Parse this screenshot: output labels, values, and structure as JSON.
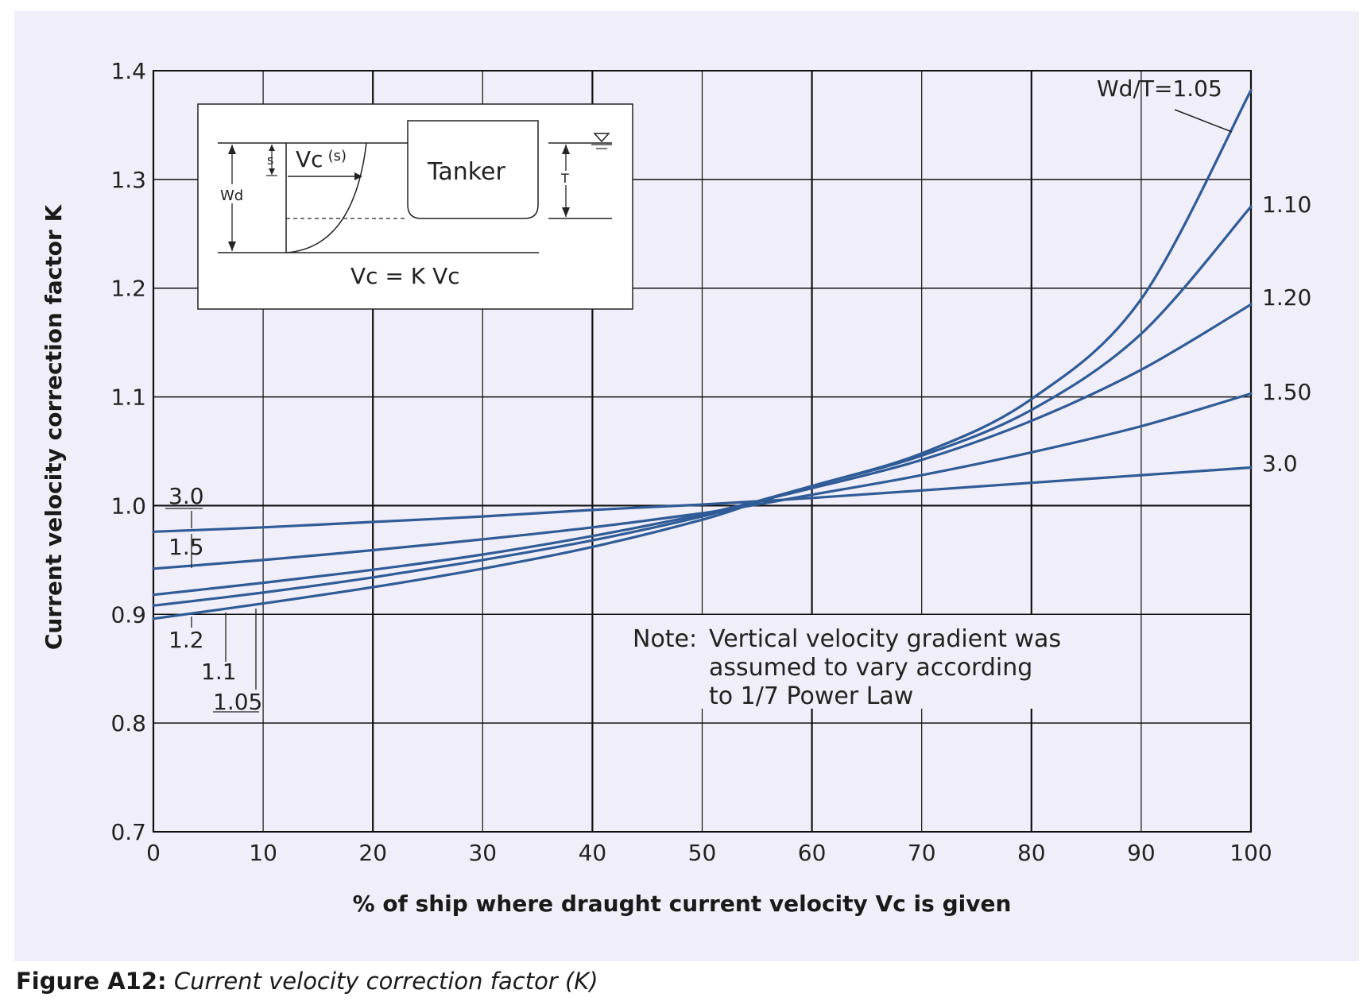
{
  "chart_data": {
    "type": "line",
    "title": "",
    "xlabel": "% of ship where draught current velocity Vc is given",
    "ylabel": "Current velocity correction factor K",
    "xlim": [
      0,
      100
    ],
    "ylim": [
      0.7,
      1.4
    ],
    "x_ticks": [
      0,
      10,
      20,
      30,
      40,
      50,
      60,
      70,
      80,
      90,
      100
    ],
    "x_tick_labels": [
      "0",
      "10",
      "20",
      "30",
      "40",
      "50",
      "60",
      "70",
      "80",
      "90",
      "100"
    ],
    "y_ticks": [
      0.7,
      0.8,
      0.9,
      1.0,
      1.1,
      1.2,
      1.3,
      1.4
    ],
    "y_tick_labels": [
      "0.7",
      "0.8",
      "0.9",
      "1.0",
      "1.1",
      "1.2",
      "1.3",
      "1.4"
    ],
    "grid": true,
    "line_color": "#2f5b97",
    "x": [
      0,
      10,
      20,
      30,
      40,
      50,
      55,
      60,
      70,
      80,
      90,
      100
    ],
    "series": [
      {
        "right_label": "Wd/T=1.05",
        "left_label": "1.05",
        "values": [
          0.896,
          0.91,
          0.925,
          0.942,
          0.962,
          0.987,
          1.003,
          1.018,
          1.048,
          1.098,
          1.19,
          1.382
        ]
      },
      {
        "right_label": "1.10",
        "left_label": "1.1",
        "values": [
          0.908,
          0.92,
          0.934,
          0.95,
          0.968,
          0.99,
          1.004,
          1.018,
          1.046,
          1.088,
          1.158,
          1.275
        ]
      },
      {
        "right_label": "1.20",
        "left_label": "1.2",
        "values": [
          0.918,
          0.929,
          0.941,
          0.955,
          0.972,
          0.992,
          1.004,
          1.016,
          1.042,
          1.078,
          1.125,
          1.185
        ]
      },
      {
        "right_label": "1.50",
        "left_label": "1.5",
        "values": [
          0.942,
          0.95,
          0.959,
          0.969,
          0.98,
          0.993,
          1.001,
          1.01,
          1.028,
          1.049,
          1.073,
          1.103
        ]
      },
      {
        "right_label": "3.0",
        "left_label": "3.0",
        "values": [
          0.976,
          0.98,
          0.985,
          0.99,
          0.996,
          1.001,
          1.004,
          1.007,
          1.014,
          1.021,
          1.028,
          1.035
        ]
      }
    ],
    "annotations": [
      "Note:",
      "Vertical velocity gradient was",
      "assumed to vary according",
      "to 1/7 Power Law"
    ]
  },
  "inset": {
    "tanker_label": "Tanker",
    "wd_label": "Wd",
    "s_label": "s",
    "t_label": "T",
    "vc_label": "Vc",
    "vc_sub": "(s)",
    "formula": "Vc = K Vc"
  },
  "caption": {
    "label": "Figure A12:",
    "text": "Current velocity correction factor (K)"
  }
}
